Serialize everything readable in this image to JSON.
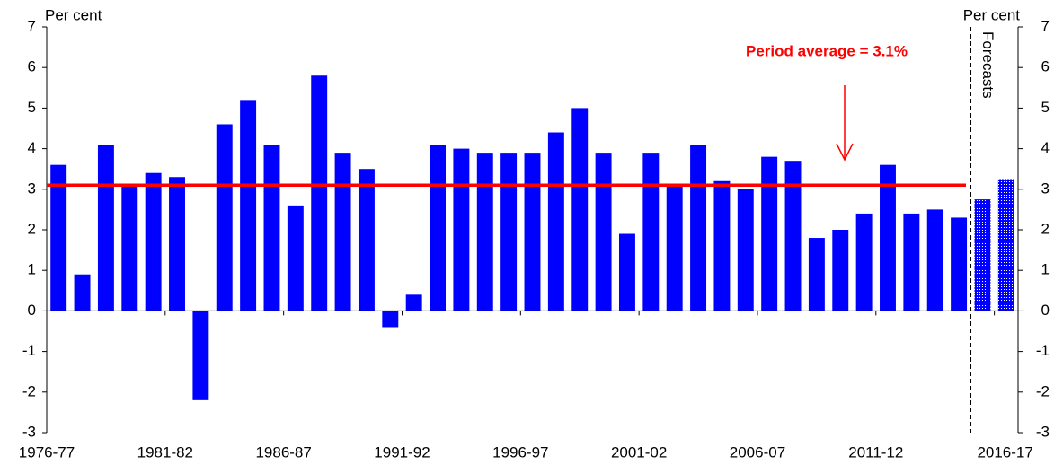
{
  "chart_data": {
    "type": "bar",
    "y_label": "Per cent",
    "y2_label": "Per cent",
    "annotation": "Period average = 3.1%",
    "average": 3.1,
    "average_color": "#ff0000",
    "categories": [
      "1976-77",
      null,
      null,
      null,
      null,
      "1981-82",
      null,
      null,
      null,
      null,
      "1986-87",
      null,
      null,
      null,
      null,
      "1991-92",
      null,
      null,
      null,
      null,
      "1996-97",
      null,
      null,
      null,
      null,
      "2001-02",
      null,
      null,
      null,
      null,
      "2006-07",
      null,
      null,
      null,
      null,
      "2011-12",
      null,
      null,
      null,
      null,
      "2016-17"
    ],
    "series": [
      {
        "color": "#0000ff",
        "values": [
          3.6,
          0.9,
          4.1,
          3.1,
          3.4,
          3.3,
          -2.2,
          4.6,
          5.2,
          4.1,
          2.6,
          5.8,
          3.9,
          3.5,
          -0.4,
          0.4,
          4.1,
          4.0,
          3.9,
          3.9,
          3.9,
          4.4,
          5.0,
          3.9,
          1.9,
          3.9,
          3.1,
          4.1,
          3.2,
          3.0,
          3.8,
          3.7,
          1.8,
          2.0,
          2.4,
          3.6,
          2.4,
          2.5,
          2.3,
          null,
          null
        ]
      },
      {
        "name": "Forecasts",
        "color": "#0000ff",
        "pattern": "dots",
        "values": [
          null,
          null,
          null,
          null,
          null,
          null,
          null,
          null,
          null,
          null,
          null,
          null,
          null,
          null,
          null,
          null,
          null,
          null,
          null,
          null,
          null,
          null,
          null,
          null,
          null,
          null,
          null,
          null,
          null,
          null,
          null,
          null,
          null,
          null,
          null,
          null,
          null,
          null,
          null,
          2.75,
          3.25
        ]
      }
    ],
    "ylim": [
      -3,
      7
    ],
    "yticks": [
      -3,
      -2,
      -1,
      0,
      1,
      2,
      3,
      4,
      5,
      6,
      7
    ],
    "y2lim": [
      -3,
      7
    ],
    "y2ticks": [
      -3,
      -2,
      -1,
      0,
      1,
      2,
      3,
      4,
      5,
      6,
      7
    ]
  }
}
